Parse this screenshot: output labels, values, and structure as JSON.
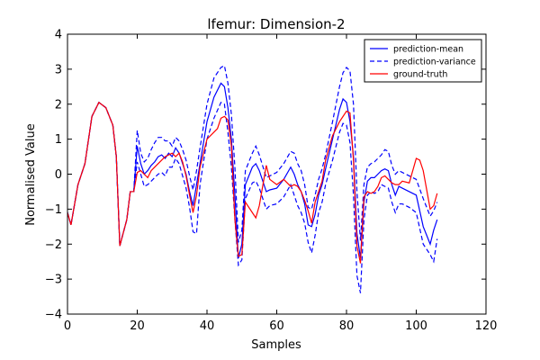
{
  "chart_data": {
    "type": "line",
    "title": "lfemur: Dimension-2",
    "xlabel": "Samples",
    "ylabel": "Normalised Value",
    "xlim": [
      0,
      120
    ],
    "ylim": [
      -4,
      4
    ],
    "xticks": [
      0,
      20,
      40,
      60,
      80,
      100,
      120
    ],
    "yticks": [
      -4,
      -3,
      -2,
      -1,
      0,
      1,
      2,
      3,
      4
    ],
    "grid": false,
    "legend": "top-right",
    "legend_entries": [
      "prediction-mean",
      "prediction-variance",
      "ground-truth"
    ],
    "colors": {
      "mean": "#0000ff",
      "variance": "#0000ff",
      "truth": "#ff0000"
    },
    "series": [
      {
        "name": "prediction-mean",
        "style": "solid",
        "color": "#0000ff",
        "x": [
          0,
          1,
          3,
          5,
          7,
          9,
          11,
          13,
          14,
          15,
          17,
          18,
          19,
          20,
          21,
          22,
          23,
          24,
          25,
          26,
          27,
          28,
          29,
          30,
          31,
          32,
          33,
          34,
          35,
          36,
          37,
          38,
          40,
          42,
          44,
          45,
          46,
          47,
          48,
          49,
          50,
          51,
          53,
          54,
          55,
          57,
          58,
          60,
          62,
          64,
          65,
          66,
          67,
          68,
          69,
          70,
          71,
          72,
          73,
          74,
          76,
          78,
          79,
          80,
          81,
          82,
          83,
          84,
          85,
          86,
          87,
          88,
          89,
          90,
          91,
          92,
          93,
          94,
          95,
          96,
          98,
          100,
          102,
          104,
          105,
          106
        ],
        "y": [
          -1.1,
          -1.45,
          -0.3,
          0.3,
          1.65,
          2.05,
          1.9,
          1.4,
          0.5,
          -2.05,
          -1.3,
          -0.5,
          -0.5,
          0.8,
          0.3,
          0.0,
          0.1,
          0.25,
          0.35,
          0.5,
          0.55,
          0.45,
          0.6,
          0.5,
          0.75,
          0.6,
          0.3,
          0.0,
          -0.5,
          -0.9,
          -0.3,
          0.3,
          1.5,
          2.2,
          2.6,
          2.5,
          1.9,
          1.0,
          -0.6,
          -2.4,
          -2.0,
          -0.3,
          0.2,
          0.3,
          0.1,
          -0.5,
          -0.45,
          -0.4,
          -0.15,
          0.2,
          0.0,
          -0.3,
          -0.5,
          -0.85,
          -1.45,
          -1.5,
          -1.15,
          -0.6,
          -0.3,
          0.15,
          1.0,
          1.85,
          2.15,
          2.05,
          1.5,
          0.5,
          -1.7,
          -2.4,
          -0.8,
          -0.2,
          -0.1,
          -0.1,
          0.0,
          0.1,
          0.15,
          0.1,
          -0.3,
          -0.6,
          -0.35,
          -0.4,
          -0.5,
          -0.6,
          -1.5,
          -2.0,
          -1.6,
          -1.3
        ]
      },
      {
        "name": "prediction-variance",
        "style": "dashed",
        "color": "#0000ff",
        "x": [
          0,
          1,
          3,
          5,
          7,
          9,
          11,
          13,
          14,
          15,
          17,
          18,
          19,
          20,
          21,
          22,
          23,
          24,
          25,
          26,
          27,
          28,
          29,
          30,
          31,
          32,
          33,
          34,
          35,
          36,
          37,
          38,
          40,
          42,
          44,
          45,
          46,
          47,
          48,
          49,
          50,
          51,
          53,
          54,
          55,
          57,
          58,
          60,
          62,
          64,
          65,
          66,
          67,
          68,
          69,
          70,
          71,
          72,
          73,
          74,
          76,
          78,
          79,
          80,
          81,
          82,
          83,
          84,
          85,
          86,
          87,
          88,
          89,
          90,
          91,
          92,
          93,
          94,
          95,
          96,
          98,
          100,
          102,
          104,
          105,
          106
        ],
        "y": [
          -1.1,
          -1.45,
          -0.3,
          0.3,
          1.65,
          2.05,
          1.9,
          1.4,
          0.5,
          -2.05,
          -1.3,
          -0.5,
          -0.5,
          1.25,
          0.6,
          0.35,
          0.45,
          0.7,
          0.9,
          1.05,
          1.05,
          0.95,
          0.95,
          0.8,
          1.05,
          0.95,
          0.7,
          0.4,
          -0.05,
          -0.45,
          0.1,
          0.75,
          2.0,
          2.75,
          3.05,
          3.1,
          2.6,
          1.7,
          0.2,
          -1.95,
          -1.6,
          0.1,
          0.6,
          0.8,
          0.55,
          -0.1,
          -0.05,
          0.05,
          0.3,
          0.65,
          0.6,
          0.3,
          0.1,
          -0.3,
          -0.95,
          -1.0,
          -0.6,
          -0.15,
          0.15,
          0.55,
          1.5,
          2.5,
          2.9,
          3.05,
          2.95,
          2.0,
          -0.5,
          -1.9,
          -0.3,
          0.2,
          0.3,
          0.35,
          0.45,
          0.55,
          0.7,
          0.65,
          0.25,
          0.0,
          0.1,
          0.05,
          -0.05,
          -0.15,
          -0.7,
          -1.2,
          -1.05,
          -0.8
        ]
      },
      {
        "name": "prediction-variance-lower",
        "style": "dashed",
        "color": "#0000ff",
        "x": [
          0,
          1,
          3,
          5,
          7,
          9,
          11,
          13,
          14,
          15,
          17,
          18,
          19,
          20,
          21,
          22,
          23,
          24,
          25,
          26,
          27,
          28,
          29,
          30,
          31,
          32,
          33,
          34,
          35,
          36,
          37,
          38,
          40,
          42,
          44,
          45,
          46,
          47,
          48,
          49,
          50,
          51,
          53,
          54,
          55,
          57,
          58,
          60,
          62,
          64,
          65,
          66,
          67,
          68,
          69,
          70,
          71,
          72,
          73,
          74,
          76,
          78,
          79,
          80,
          81,
          82,
          83,
          84,
          85,
          86,
          87,
          88,
          89,
          90,
          91,
          92,
          93,
          94,
          95,
          96,
          98,
          100,
          102,
          104,
          105,
          106
        ],
        "y": [
          -1.1,
          -1.45,
          -0.3,
          0.3,
          1.65,
          2.05,
          1.9,
          1.4,
          0.5,
          -2.05,
          -1.3,
          -0.5,
          -0.5,
          0.35,
          0.0,
          -0.35,
          -0.3,
          -0.2,
          -0.1,
          0.0,
          0.05,
          -0.05,
          0.2,
          0.2,
          0.45,
          0.3,
          -0.05,
          -0.4,
          -0.95,
          -1.65,
          -1.7,
          -0.3,
          1.0,
          1.6,
          2.05,
          2.0,
          1.2,
          0.2,
          -1.3,
          -2.6,
          -2.45,
          -0.7,
          -0.25,
          -0.2,
          -0.4,
          -1.0,
          -0.9,
          -0.85,
          -0.65,
          -0.3,
          -0.6,
          -0.9,
          -1.1,
          -1.4,
          -1.95,
          -2.25,
          -1.75,
          -1.1,
          -0.8,
          -0.3,
          0.4,
          1.2,
          1.45,
          1.4,
          0.9,
          -0.6,
          -2.9,
          -3.4,
          -1.3,
          -0.6,
          -0.5,
          -0.55,
          -0.5,
          -0.3,
          -0.35,
          -0.4,
          -0.8,
          -1.1,
          -0.85,
          -0.85,
          -0.95,
          -1.1,
          -2.0,
          -2.3,
          -2.5,
          -1.85
        ]
      },
      {
        "name": "ground-truth",
        "style": "solid",
        "color": "#ff0000",
        "x": [
          0,
          1,
          3,
          5,
          7,
          9,
          11,
          13,
          14,
          15,
          17,
          18,
          19,
          20,
          21,
          22,
          23,
          24,
          25,
          26,
          27,
          28,
          29,
          30,
          31,
          32,
          33,
          34,
          35,
          36,
          37,
          38,
          40,
          42,
          43,
          44,
          45,
          46,
          47,
          48,
          49,
          50,
          51,
          53,
          54,
          55,
          57,
          58,
          60,
          62,
          64,
          65,
          66,
          67,
          68,
          69,
          70,
          71,
          72,
          73,
          74,
          76,
          78,
          79,
          80,
          81,
          82,
          83,
          84,
          85,
          86,
          87,
          88,
          89,
          90,
          91,
          92,
          93,
          94,
          95,
          96,
          98,
          100,
          101,
          102,
          104,
          105,
          106
        ],
        "y": [
          -1.1,
          -1.45,
          -0.3,
          0.3,
          1.65,
          2.05,
          1.9,
          1.4,
          0.5,
          -2.05,
          -1.3,
          -0.5,
          -0.5,
          0.05,
          0.1,
          0.0,
          -0.1,
          0.1,
          0.2,
          0.3,
          0.4,
          0.5,
          0.55,
          0.6,
          0.5,
          0.6,
          0.35,
          -0.05,
          -0.6,
          -1.1,
          -0.6,
          0.2,
          1.0,
          1.2,
          1.3,
          1.6,
          1.65,
          1.55,
          0.8,
          -1.3,
          -2.35,
          -2.3,
          -0.8,
          -1.1,
          -1.25,
          -0.9,
          0.25,
          -0.15,
          -0.3,
          -0.15,
          -0.35,
          -0.3,
          -0.35,
          -0.5,
          -0.75,
          -1.05,
          -1.4,
          -0.8,
          -0.5,
          -0.2,
          0.4,
          1.1,
          1.5,
          1.65,
          1.8,
          1.75,
          0.4,
          -2.05,
          -2.55,
          -0.65,
          -0.5,
          -0.55,
          -0.5,
          -0.35,
          -0.1,
          -0.05,
          -0.15,
          -0.25,
          -0.3,
          -0.3,
          -0.2,
          -0.25,
          0.45,
          0.4,
          0.1,
          -1.0,
          -0.9,
          -0.55
        ]
      }
    ]
  }
}
